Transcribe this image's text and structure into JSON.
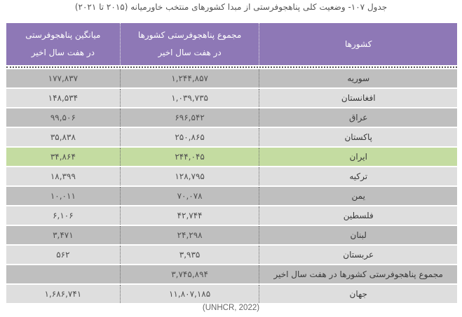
{
  "caption": "جدول ۱۰۷- وضعیت کلی پناهجوفرستی از مبدا کشورهای منتخب خاورمیانه (۲۰۱۵ تا ۲۰۲۱)",
  "table": {
    "headers": {
      "country": "کشورها",
      "total_line1": "مجموع پناهجوفرستی کشورها",
      "total_line2": "در هفت سال اخیر",
      "avg_line1": "میانگین پناهجوفرستی",
      "avg_line2": "در هفت سال اخیر"
    },
    "rows": [
      {
        "country": "سوریه",
        "total": "۱,۲۴۴,۸۵۷",
        "avg": "۱۷۷,۸۳۷",
        "style": "dark"
      },
      {
        "country": "افغانستان",
        "total": "۱,۰۳۹,۷۳۵",
        "avg": "۱۴۸,۵۳۴",
        "style": "light"
      },
      {
        "country": "عراق",
        "total": "۶۹۶,۵۴۲",
        "avg": "۹۹,۵۰۶",
        "style": "dark"
      },
      {
        "country": "پاکستان",
        "total": "۲۵۰,۸۶۵",
        "avg": "۳۵,۸۳۸",
        "style": "light"
      },
      {
        "country": "ایران",
        "total": "۲۴۴,۰۴۵",
        "avg": "۳۴,۸۶۴",
        "style": "highlight"
      },
      {
        "country": "ترکیه",
        "total": "۱۲۸,۷۹۵",
        "avg": "۱۸,۳۹۹",
        "style": "light"
      },
      {
        "country": "یمن",
        "total": "۷۰,۰۷۸",
        "avg": "۱۰,۰۱۱",
        "style": "dark"
      },
      {
        "country": "فلسطین",
        "total": "۴۲,۷۴۴",
        "avg": "۶,۱۰۶",
        "style": "light"
      },
      {
        "country": "لبنان",
        "total": "۲۴,۲۹۸",
        "avg": "۳,۴۷۱",
        "style": "dark"
      },
      {
        "country": "عربستان",
        "total": "۳,۹۳۵",
        "avg": "۵۶۲",
        "style": "light"
      },
      {
        "country": "مجموع پناهجوفرستی کشورها در هفت سال اخیر",
        "total": "۳,۷۴۵,۸۹۴",
        "avg": "",
        "style": "dark"
      },
      {
        "country": "جهان",
        "total": "۱۱,۸۰۷,۱۸۵",
        "avg": "۱,۶۸۶,۷۴۱",
        "style": "light"
      }
    ]
  },
  "source": "(UNHCR, 2022)",
  "colors": {
    "header_bg": "#8e78b6",
    "row_dark": "#bfbfbf",
    "row_light": "#dedede",
    "row_highlight": "#c4dca1"
  }
}
